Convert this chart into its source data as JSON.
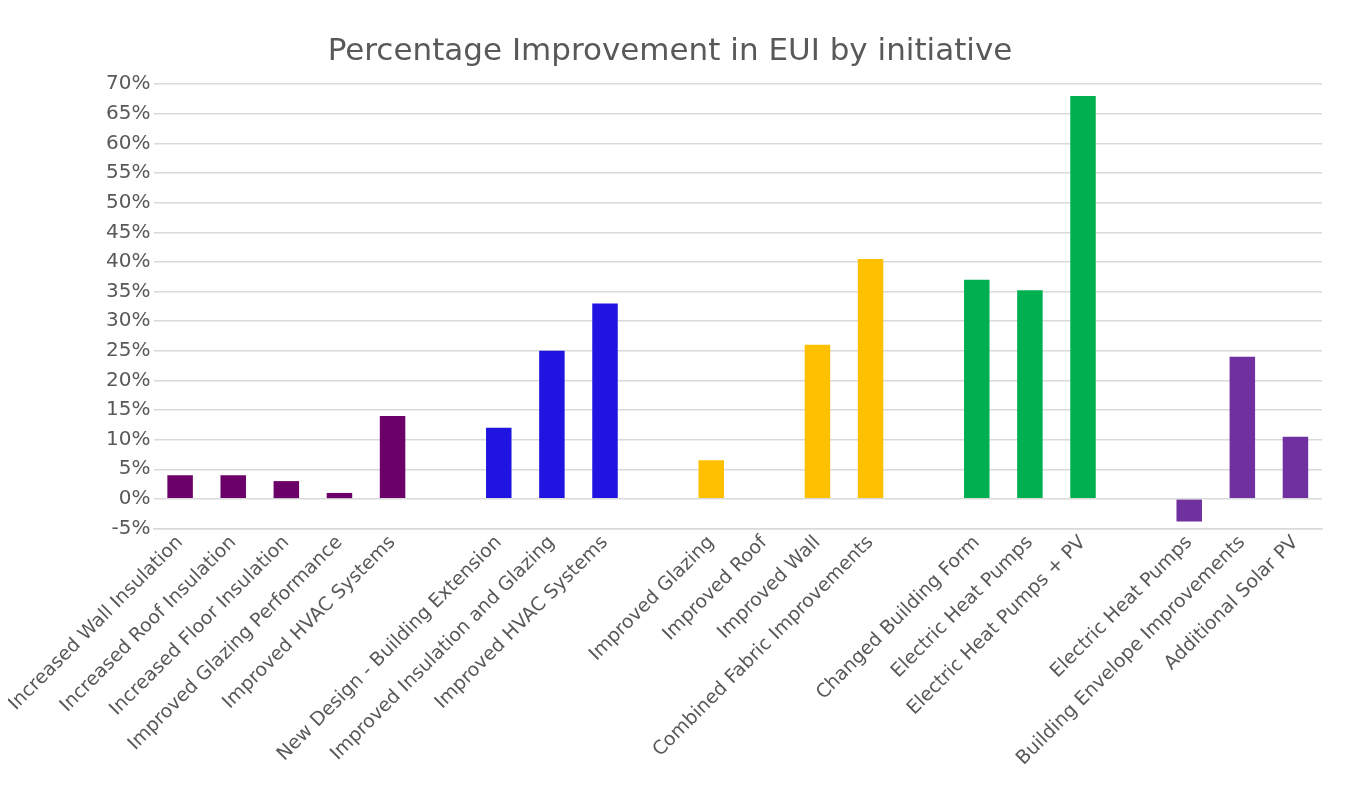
{
  "chart_data": {
    "type": "bar",
    "title": "Percentage Improvement in EUI by initiative",
    "categories": [
      "Increased Wall Insulation",
      "Increased Roof Insulation",
      "Increased Floor Insulation",
      "Improved Glazing Performance",
      "Improved HVAC Systems",
      null,
      "New Design - Building Extension",
      "Improved Insulation and Glazing",
      "Improved HVAC Systems",
      null,
      "Improved Glazing",
      "Improved Roof",
      "Improved Wall",
      "Combined Fabric Improvements",
      null,
      "Changed Building Form",
      "Electric Heat Pumps",
      "Electric Heat Pumps + PV",
      null,
      "Electric Heat Pumps",
      "Building Envelope Improvements",
      "Additional Solar PV"
    ],
    "values": [
      4,
      4,
      3,
      1,
      14,
      null,
      12,
      25,
      33,
      null,
      6.5,
      0,
      26,
      40.5,
      null,
      37,
      35.2,
      68,
      null,
      -3.8,
      24,
      10.5
    ],
    "colors": [
      "#6a0068",
      "#6a0068",
      "#6a0068",
      "#6a0068",
      "#6a0068",
      null,
      "#2014e0",
      "#2014e0",
      "#2014e0",
      null,
      "#ffc000",
      "#ffc000",
      "#ffc000",
      "#ffc000",
      null,
      "#00b050",
      "#00b050",
      "#00b050",
      null,
      "#7030a0",
      "#7030a0",
      "#7030a0"
    ],
    "ylim": [
      -5,
      70
    ],
    "yticks": [
      {
        "value": -5,
        "label": "-5%"
      },
      {
        "value": 0,
        "label": "0%"
      },
      {
        "value": 5,
        "label": "5%"
      },
      {
        "value": 10,
        "label": "10%"
      },
      {
        "value": 15,
        "label": "15%"
      },
      {
        "value": 20,
        "label": "20%"
      },
      {
        "value": 25,
        "label": "25%"
      },
      {
        "value": 30,
        "label": "30%"
      },
      {
        "value": 35,
        "label": "35%"
      },
      {
        "value": 40,
        "label": "40%"
      },
      {
        "value": 45,
        "label": "45%"
      },
      {
        "value": 50,
        "label": "50%"
      },
      {
        "value": 55,
        "label": "55%"
      },
      {
        "value": 60,
        "label": "60%"
      },
      {
        "value": 65,
        "label": "65%"
      },
      {
        "value": 70,
        "label": "70%"
      }
    ],
    "grid": "y"
  }
}
